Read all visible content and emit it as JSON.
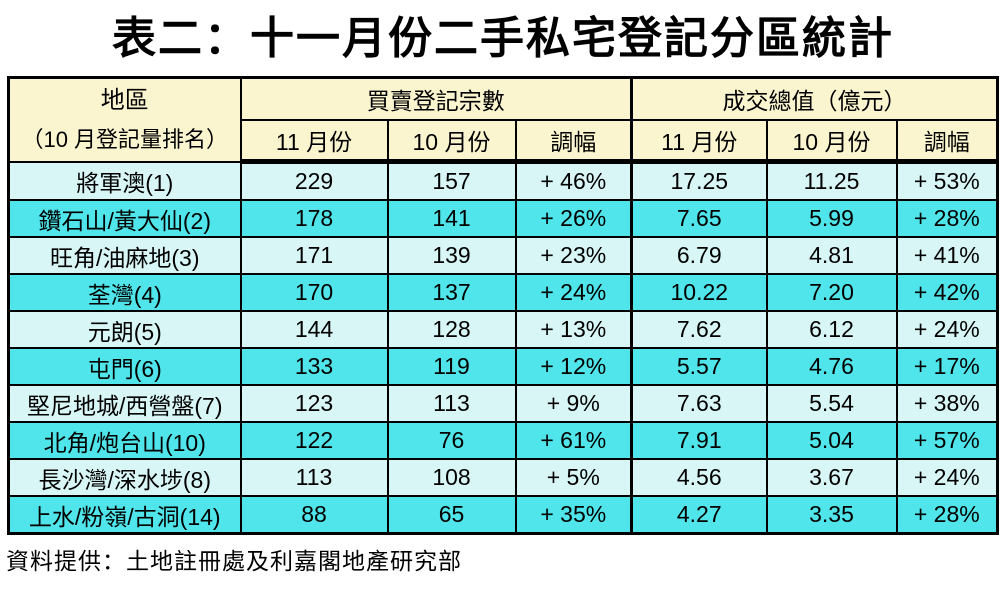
{
  "title": "表二：十一月份二手私宅登記分區統計",
  "footer": "資料提供：土地註冊處及利嘉閣地產研究部",
  "colors": {
    "page_background": "#FFFFFF",
    "header_background": "#FAF5CE",
    "row_light_background": "#D8F6F6",
    "row_bright_background": "#4FE5EA",
    "border": "#000000",
    "text": "#000000"
  },
  "table": {
    "header": {
      "district": "地區",
      "district_sub": "（10 月登記量排名）",
      "group_deals": "買賣登記宗數",
      "group_value": "成交總值（億元）",
      "sub": [
        "11 月份",
        "10 月份",
        "調幅",
        "11 月份",
        "10 月份",
        "調幅"
      ]
    },
    "rows": [
      {
        "district": "將軍澳(1)",
        "values": [
          "229",
          "157",
          "+ 46%",
          "17.25",
          "11.25",
          "+ 53%"
        ]
      },
      {
        "district": "鑽石山/黃大仙(2)",
        "values": [
          "178",
          "141",
          "+ 26%",
          "7.65",
          "5.99",
          "+ 28%"
        ]
      },
      {
        "district": "旺角/油麻地(3)",
        "values": [
          "171",
          "139",
          "+ 23%",
          "6.79",
          "4.81",
          "+ 41%"
        ]
      },
      {
        "district": "荃灣(4)",
        "values": [
          "170",
          "137",
          "+ 24%",
          "10.22",
          "7.20",
          "+ 42%"
        ]
      },
      {
        "district": "元朗(5)",
        "values": [
          "144",
          "128",
          "+ 13%",
          "7.62",
          "6.12",
          "+ 24%"
        ]
      },
      {
        "district": "屯門(6)",
        "values": [
          "133",
          "119",
          "+ 12%",
          "5.57",
          "4.76",
          "+ 17%"
        ]
      },
      {
        "district": "堅尼地城/西營盤(7)",
        "values": [
          "123",
          "113",
          "+ 9%",
          "7.63",
          "5.54",
          "+ 38%"
        ]
      },
      {
        "district": "北角/炮台山(10)",
        "values": [
          "122",
          "76",
          "+ 61%",
          "7.91",
          "5.04",
          "+ 57%"
        ]
      },
      {
        "district": "長沙灣/深水埗(8)",
        "values": [
          "113",
          "108",
          "+ 5%",
          "4.56",
          "3.67",
          "+ 24%"
        ]
      },
      {
        "district": "上水/粉嶺/古洞(14)",
        "values": [
          "88",
          "65",
          "+ 35%",
          "4.27",
          "3.35",
          "+ 28%"
        ]
      }
    ]
  },
  "chart_data": {
    "type": "table",
    "title": "表二：十一月份二手私宅登記分區統計",
    "column_groups": [
      "地區（10 月登記量排名）",
      "買賣登記宗數",
      "成交總值（億元）"
    ],
    "columns": [
      "地區（10 月登記量排名）",
      "買賣登記宗數 11 月份",
      "買賣登記宗數 10 月份",
      "買賣登記宗數 調幅",
      "成交總值（億元）11 月份",
      "成交總值（億元）10 月份",
      "成交總值（億元）調幅"
    ],
    "rows": [
      [
        "將軍澳(1)",
        229,
        157,
        "+46%",
        17.25,
        11.25,
        "+53%"
      ],
      [
        "鑽石山/黃大仙(2)",
        178,
        141,
        "+26%",
        7.65,
        5.99,
        "+28%"
      ],
      [
        "旺角/油麻地(3)",
        171,
        139,
        "+23%",
        6.79,
        4.81,
        "+41%"
      ],
      [
        "荃灣(4)",
        170,
        137,
        "+24%",
        10.22,
        7.2,
        "+42%"
      ],
      [
        "元朗(5)",
        144,
        128,
        "+13%",
        7.62,
        6.12,
        "+24%"
      ],
      [
        "屯門(6)",
        133,
        119,
        "+12%",
        5.57,
        4.76,
        "+17%"
      ],
      [
        "堅尼地城/西營盤(7)",
        123,
        113,
        "+9%",
        7.63,
        5.54,
        "+38%"
      ],
      [
        "北角/炮台山(10)",
        122,
        76,
        "+61%",
        7.91,
        5.04,
        "+57%"
      ],
      [
        "長沙灣/深水埗(8)",
        113,
        108,
        "+5%",
        4.56,
        3.67,
        "+24%"
      ],
      [
        "上水/粉嶺/古洞(14)",
        88,
        65,
        "+35%",
        4.27,
        3.35,
        "+28%"
      ]
    ],
    "source": "資料提供：土地註冊處及利嘉閣地產研究部"
  }
}
